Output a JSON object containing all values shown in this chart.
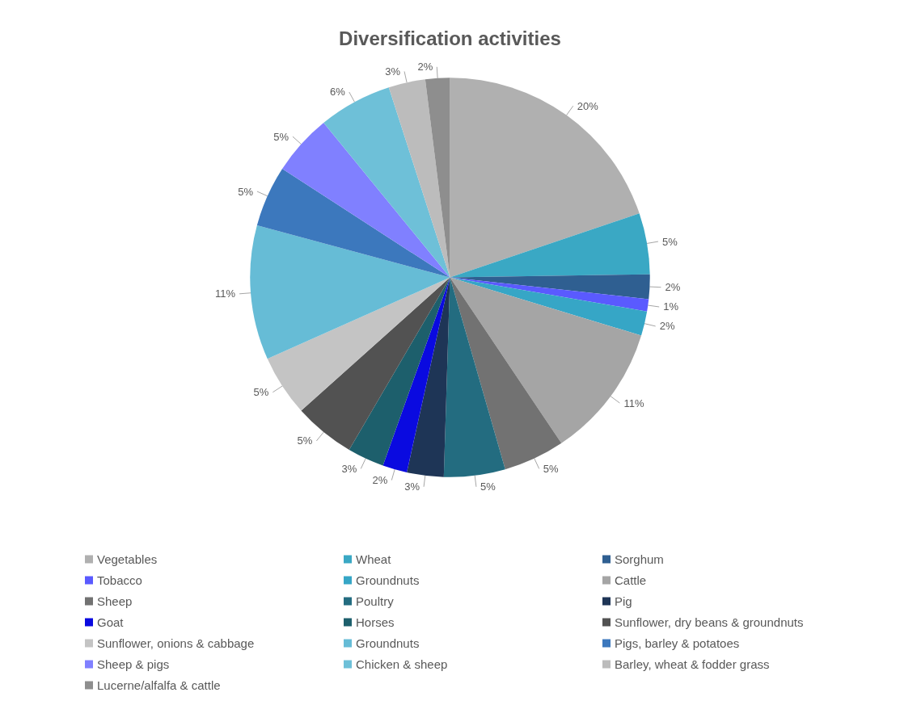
{
  "chart_data": {
    "type": "pie",
    "title": "Diversification activities",
    "categories": [
      "Vegetables",
      "Wheat",
      "Sorghum",
      "Tobacco",
      "Groundnuts",
      "Cattle",
      "Sheep",
      "Poultry",
      "Pig",
      "Goat",
      "Horses",
      "Sunflower, dry beans & groundnuts",
      "Sunflower, onions & cabbage",
      "Groundnuts",
      "Pigs, barley & potatoes",
      "Sheep & pigs",
      "Chicken & sheep",
      "Barley, wheat & fodder grass",
      "Lucerne/alfalfa & cattle"
    ],
    "values": [
      20,
      5,
      2,
      1,
      2,
      11,
      5,
      5,
      3,
      2,
      3,
      5,
      5,
      11,
      5,
      5,
      6,
      3,
      2
    ],
    "colors": [
      "#b0b0b0",
      "#3aa8c4",
      "#2f5f91",
      "#5a5aff",
      "#36a6c6",
      "#a5a5a5",
      "#727272",
      "#236c80",
      "#1e3556",
      "#0a0ae0",
      "#1d5f6c",
      "#525252",
      "#c4c4c4",
      "#66bcd6",
      "#3c78bd",
      "#8080ff",
      "#6ec0d8",
      "#bcbcbc",
      "#8e8e8e"
    ],
    "value_labels": [
      "20%",
      "5%",
      "2%",
      "1%",
      "2%",
      "11%",
      "5%",
      "5%",
      "3%",
      "2%",
      "3%",
      "5%",
      "5%",
      "11%",
      "5%",
      "5%",
      "6%",
      "3%",
      "2%"
    ],
    "legend": "bottom"
  }
}
